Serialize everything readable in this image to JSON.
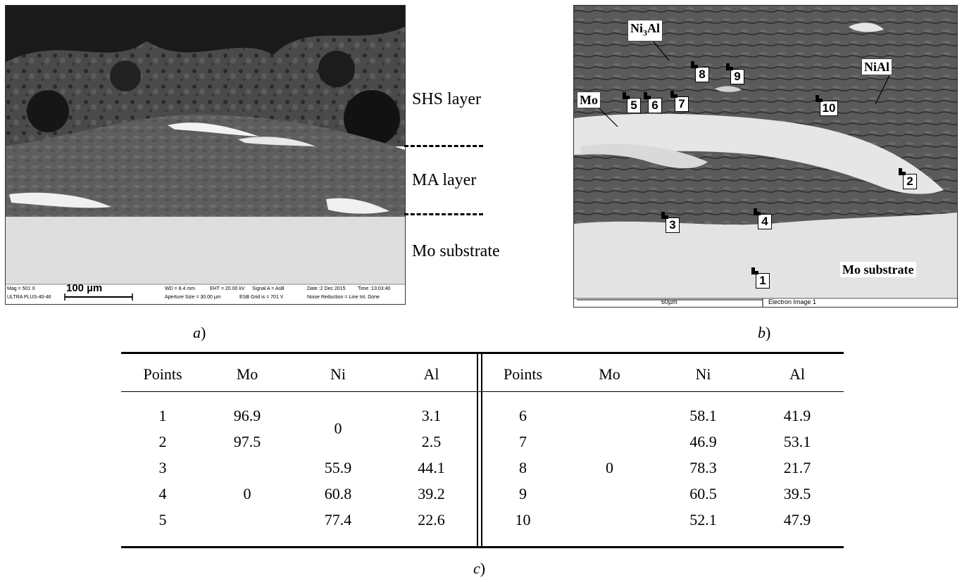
{
  "panel_a": {
    "caption_letter": "a",
    "layer_labels": [
      "SHS layer",
      "MA layer",
      "Mo substrate"
    ],
    "info_bar": {
      "mag": "Mag =  501 X",
      "instrument": "ULTRA PLUS-40-46",
      "scale": "100 µm",
      "wd": "WD =  8.4 mm",
      "eht": "EHT = 20.00 kV",
      "signal": "Signal A = AsB",
      "date": "Date :2 Dec 2015",
      "time": "Time :13:03:40",
      "aperture": "Aperture Size = 30.00 µm",
      "esb": "ESB Grid is =  701 V",
      "noise": "Noise Reduction = Line Int. Done"
    }
  },
  "panel_b": {
    "caption_letter": "b",
    "phase_labels": {
      "ni3al_main": "Ni",
      "ni3al_sub": "3",
      "ni3al_tail": "Al",
      "nial": "NiAl",
      "mo": "Mo",
      "substrate": "Mo substrate"
    },
    "points": [
      "1",
      "2",
      "3",
      "4",
      "5",
      "6",
      "7",
      "8",
      "9",
      "10"
    ],
    "scale": "60µm",
    "image_label": "Electron Image 1"
  },
  "panel_c": {
    "caption_letter": "c",
    "headers": [
      "Points",
      "Mo",
      "Ni",
      "Al"
    ],
    "left_rows": [
      {
        "point": "1",
        "mo": "96.9",
        "al": "3.1"
      },
      {
        "point": "2",
        "mo": "97.5",
        "al": "2.5"
      },
      {
        "point": "3",
        "ni": "55.9",
        "al": "44.1"
      },
      {
        "point": "4",
        "ni": "60.8",
        "al": "39.2"
      },
      {
        "point": "5",
        "ni": "77.4",
        "al": "22.6"
      }
    ],
    "left_ni_merged": "0",
    "left_mo_merged": "0",
    "right_rows": [
      {
        "point": "6",
        "ni": "58.1",
        "al": "41.9"
      },
      {
        "point": "7",
        "ni": "46.9",
        "al": "53.1"
      },
      {
        "point": "8",
        "ni": "78.3",
        "al": "21.7"
      },
      {
        "point": "9",
        "ni": "60.5",
        "al": "39.5"
      },
      {
        "point": "10",
        "ni": "52.1",
        "al": "47.9"
      }
    ],
    "right_mo_merged": "0"
  }
}
